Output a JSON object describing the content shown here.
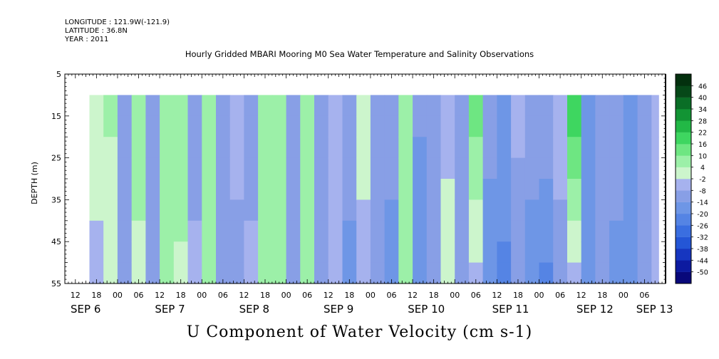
{
  "header": {
    "longitude": "LONGITUDE : 121.9W(-121.9)",
    "latitude": "LATITUDE : 36.8N",
    "year": "YEAR : 2011",
    "title": "Hourly Gridded MBARI Mooring M0 Sea Water Temperature and Salinity Observations"
  },
  "chart_data": {
    "type": "heatmap",
    "title": "Hourly Gridded MBARI Mooring M0 Sea Water Temperature and Salinity Observations",
    "xlabel": "",
    "ylabel": "DEPTH (m)",
    "caption": "U Component of Water Velocity (cm s-1)",
    "ylim": [
      55,
      5
    ],
    "y_ticks": [
      5,
      15,
      25,
      35,
      45,
      55
    ],
    "data_depth_range_m": [
      10,
      55
    ],
    "x_start": "2011-09-06 09:00",
    "x_end": "2011-09-13 12:00",
    "data_time_start": "2011-09-06 16:00",
    "x_hour_ticks": [
      "12",
      "18",
      "00",
      "06",
      "12",
      "18",
      "00",
      "06",
      "12",
      "18",
      "00",
      "06",
      "12",
      "18",
      "00",
      "06",
      "12",
      "18",
      "00",
      "06",
      "12",
      "18",
      "00",
      "06",
      "12",
      "18",
      "00",
      "06"
    ],
    "x_hour_tick_values": [
      "2011-09-06 12:00",
      "2011-09-06 18:00",
      "2011-09-07 00:00",
      "2011-09-07 06:00",
      "2011-09-07 12:00",
      "2011-09-07 18:00",
      "2011-09-08 00:00",
      "2011-09-08 06:00",
      "2011-09-08 12:00",
      "2011-09-08 18:00",
      "2011-09-09 00:00",
      "2011-09-09 06:00",
      "2011-09-09 12:00",
      "2011-09-09 18:00",
      "2011-09-10 00:00",
      "2011-09-10 06:00",
      "2011-09-10 12:00",
      "2011-09-10 18:00",
      "2011-09-11 00:00",
      "2011-09-11 06:00",
      "2011-09-11 12:00",
      "2011-09-11 18:00",
      "2011-09-12 00:00",
      "2011-09-12 06:00",
      "2011-09-12 12:00",
      "2011-09-12 18:00",
      "2011-09-13 00:00",
      "2011-09-13 06:00"
    ],
    "x_day_labels": [
      "SEP 6",
      "SEP 7",
      "SEP 8",
      "SEP 9",
      "SEP 10",
      "SEP 11",
      "SEP 12",
      "SEP 13"
    ],
    "x_day_label_values": [
      "2011-09-06 09:00",
      "2011-09-07 09:00",
      "2011-09-08 09:00",
      "2011-09-09 09:00",
      "2011-09-10 09:00",
      "2011-09-11 09:00",
      "2011-09-12 09:00",
      "2011-09-13 02:00"
    ],
    "colorbar": {
      "levels": [
        -50,
        -44,
        -38,
        -32,
        -26,
        -20,
        -14,
        -8,
        -2,
        4,
        10,
        16,
        22,
        28,
        34,
        40,
        46
      ],
      "labels": [
        "-50",
        "-44",
        "-38",
        "-32",
        "-26",
        "-20",
        "-14",
        "-8",
        "-2",
        "4",
        "10",
        "16",
        "22",
        "28",
        "34",
        "40",
        "46"
      ],
      "colors": [
        "#08087a",
        "#0c1aa0",
        "#1636c0",
        "#2456d6",
        "#3a6ee0",
        "#5584e4",
        "#6e96e6",
        "#889fe6",
        "#a6b2ee",
        "#ccf5cc",
        "#9cf0a8",
        "#6ee682",
        "#3ed660",
        "#22b846",
        "#129434",
        "#0a6e26",
        "#064818",
        "#03300e"
      ]
    },
    "columns": [
      {
        "t": "2011-09-06 16:00",
        "surface": 2,
        "deep": -4
      },
      {
        "t": "2011-09-06 20:00",
        "surface": 6,
        "deep": -2
      },
      {
        "t": "2011-09-07 00:00",
        "surface": -10,
        "deep": -8
      },
      {
        "t": "2011-09-07 04:00",
        "surface": 8,
        "deep": 2
      },
      {
        "t": "2011-09-07 08:00",
        "surface": -14,
        "deep": -10
      },
      {
        "t": "2011-09-07 12:00",
        "surface": 6,
        "deep": 4
      },
      {
        "t": "2011-09-07 16:00",
        "surface": 10,
        "deep": 2
      },
      {
        "t": "2011-09-07 20:00",
        "surface": -12,
        "deep": -6
      },
      {
        "t": "2011-09-08 00:00",
        "surface": 8,
        "deep": 6
      },
      {
        "t": "2011-09-08 04:00",
        "surface": -10,
        "deep": -8
      },
      {
        "t": "2011-09-08 08:00",
        "surface": -4,
        "deep": -12
      },
      {
        "t": "2011-09-08 12:00",
        "surface": -12,
        "deep": -6
      },
      {
        "t": "2011-09-08 16:00",
        "surface": 10,
        "deep": 8
      },
      {
        "t": "2011-09-08 20:00",
        "surface": 4,
        "deep": 10
      },
      {
        "t": "2011-09-09 00:00",
        "surface": -10,
        "deep": -12
      },
      {
        "t": "2011-09-09 04:00",
        "surface": 6,
        "deep": 8
      },
      {
        "t": "2011-09-09 08:00",
        "surface": -12,
        "deep": -14
      },
      {
        "t": "2011-09-09 12:00",
        "surface": -8,
        "deep": -4
      },
      {
        "t": "2011-09-09 16:00",
        "surface": -10,
        "deep": -16
      },
      {
        "t": "2011-09-09 20:00",
        "surface": 4,
        "deep": -6
      },
      {
        "t": "2011-09-10 00:00",
        "surface": -14,
        "deep": -10
      },
      {
        "t": "2011-09-10 04:00",
        "surface": -10,
        "deep": -18
      },
      {
        "t": "2011-09-10 08:00",
        "surface": 6,
        "deep": 4
      },
      {
        "t": "2011-09-10 12:00",
        "surface": -12,
        "deep": -20
      },
      {
        "t": "2011-09-10 16:00",
        "surface": -8,
        "deep": -14
      },
      {
        "t": "2011-09-10 20:00",
        "surface": -6,
        "deep": 2
      },
      {
        "t": "2011-09-11 00:00",
        "surface": -12,
        "deep": -10
      },
      {
        "t": "2011-09-11 04:00",
        "surface": 14,
        "deep": -4
      },
      {
        "t": "2011-09-11 08:00",
        "surface": -10,
        "deep": -20
      },
      {
        "t": "2011-09-11 12:00",
        "surface": -14,
        "deep": -22
      },
      {
        "t": "2011-09-11 16:00",
        "surface": -6,
        "deep": -12
      },
      {
        "t": "2011-09-11 20:00",
        "surface": -10,
        "deep": -18
      },
      {
        "t": "2011-09-12 00:00",
        "surface": -8,
        "deep": -22
      },
      {
        "t": "2011-09-12 04:00",
        "surface": -6,
        "deep": -10
      },
      {
        "t": "2011-09-12 08:00",
        "surface": 20,
        "deep": -4
      },
      {
        "t": "2011-09-12 12:00",
        "surface": -14,
        "deep": -18
      },
      {
        "t": "2011-09-12 16:00",
        "surface": -12,
        "deep": -14
      },
      {
        "t": "2011-09-12 20:00",
        "surface": -10,
        "deep": -16
      },
      {
        "t": "2011-09-13 00:00",
        "surface": -16,
        "deep": -20
      },
      {
        "t": "2011-09-13 04:00",
        "surface": -10,
        "deep": -12
      },
      {
        "t": "2011-09-13 08:00",
        "surface": -6,
        "deep": -6
      },
      {
        "t": "2011-09-13 10:00",
        "surface": 10,
        "deep": 2
      }
    ]
  }
}
